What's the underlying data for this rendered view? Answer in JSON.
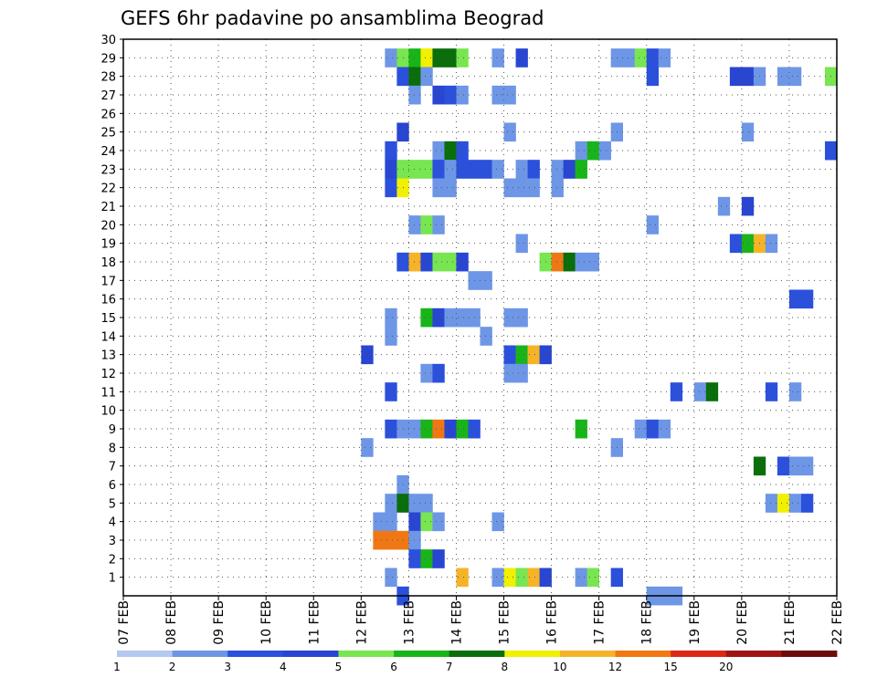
{
  "chart_data": {
    "type": "heatmap",
    "title": "GEFS 6hr padavine po ansamblima Beograd",
    "xlabel": "",
    "ylabel": "",
    "x_tick_labels": [
      "07 FEB",
      "08 FEB",
      "09 FEB",
      "10 FEB",
      "11 FEB",
      "12 FEB",
      "13 FEB",
      "14 FEB",
      "15 FEB",
      "16 FEB",
      "17 FEB",
      "18 FEB",
      "19 FEB",
      "20 FEB",
      "21 FEB",
      "22 FEB"
    ],
    "x_range_days": [
      7,
      22
    ],
    "time_step_hours": 6,
    "y_range": [
      0,
      30
    ],
    "y_ticks": [
      1,
      2,
      3,
      4,
      5,
      6,
      7,
      8,
      9,
      10,
      11,
      12,
      13,
      14,
      15,
      16,
      17,
      18,
      19,
      20,
      21,
      22,
      23,
      24,
      25,
      26,
      27,
      28,
      29,
      30
    ],
    "grid": true,
    "colorbar": {
      "position": "bottom",
      "tick_labels": [
        "1",
        "2",
        "3",
        "4",
        "5",
        "6",
        "7",
        "8",
        "10",
        "12",
        "15",
        "20"
      ],
      "colors": [
        "#b4c8f0",
        "#6e96e6",
        "#2a50dc",
        "#2846d2",
        "#78e650",
        "#19b419",
        "#0a6e0a",
        "#f0f000",
        "#f5b428",
        "#f07814",
        "#dc2814",
        "#a01414",
        "#6e0a0a"
      ]
    },
    "cells": [
      {
        "member": 29,
        "day": 12.5,
        "level": 1
      },
      {
        "member": 29,
        "day": 12.75,
        "level": 4
      },
      {
        "member": 29,
        "day": 13.0,
        "level": 5
      },
      {
        "member": 29,
        "day": 13.25,
        "level": 7
      },
      {
        "member": 29,
        "day": 13.5,
        "level": 6
      },
      {
        "member": 29,
        "day": 13.75,
        "level": 6
      },
      {
        "member": 29,
        "day": 14.0,
        "level": 4
      },
      {
        "member": 29,
        "day": 14.75,
        "level": 1
      },
      {
        "member": 29,
        "day": 15.25,
        "level": 3
      },
      {
        "member": 29,
        "day": 17.25,
        "level": 1
      },
      {
        "member": 29,
        "day": 17.5,
        "level": 1
      },
      {
        "member": 29,
        "day": 17.75,
        "level": 4
      },
      {
        "member": 29,
        "day": 18.0,
        "level": 2
      },
      {
        "member": 29,
        "day": 18.25,
        "level": 1
      },
      {
        "member": 28,
        "day": 12.75,
        "level": 2
      },
      {
        "member": 28,
        "day": 13.0,
        "level": 6
      },
      {
        "member": 28,
        "day": 13.25,
        "level": 1
      },
      {
        "member": 28,
        "day": 18.0,
        "level": 2
      },
      {
        "member": 28,
        "day": 19.75,
        "level": 3
      },
      {
        "member": 28,
        "day": 20.0,
        "level": 3
      },
      {
        "member": 28,
        "day": 20.25,
        "level": 1
      },
      {
        "member": 28,
        "day": 20.75,
        "level": 1
      },
      {
        "member": 28,
        "day": 21.0,
        "level": 1
      },
      {
        "member": 28,
        "day": 21.75,
        "level": 4
      },
      {
        "member": 27,
        "day": 13.0,
        "level": 1
      },
      {
        "member": 27,
        "day": 13.5,
        "level": 3
      },
      {
        "member": 27,
        "day": 13.75,
        "level": 2
      },
      {
        "member": 27,
        "day": 14.0,
        "level": 1
      },
      {
        "member": 27,
        "day": 14.75,
        "level": 1
      },
      {
        "member": 27,
        "day": 15.0,
        "level": 1
      },
      {
        "member": 25,
        "day": 12.75,
        "level": 3
      },
      {
        "member": 25,
        "day": 15.0,
        "level": 1
      },
      {
        "member": 25,
        "day": 17.25,
        "level": 1
      },
      {
        "member": 25,
        "day": 20.0,
        "level": 1
      },
      {
        "member": 24,
        "day": 12.5,
        "level": 2
      },
      {
        "member": 24,
        "day": 13.5,
        "level": 1
      },
      {
        "member": 24,
        "day": 13.75,
        "level": 6
      },
      {
        "member": 24,
        "day": 14.0,
        "level": 2
      },
      {
        "member": 24,
        "day": 16.5,
        "level": 1
      },
      {
        "member": 24,
        "day": 16.75,
        "level": 5
      },
      {
        "member": 24,
        "day": 17.0,
        "level": 1
      },
      {
        "member": 24,
        "day": 21.75,
        "level": 2
      },
      {
        "member": 23,
        "day": 12.5,
        "level": 3
      },
      {
        "member": 23,
        "day": 12.75,
        "level": 4
      },
      {
        "member": 23,
        "day": 13.0,
        "level": 4
      },
      {
        "member": 23,
        "day": 13.25,
        "level": 4
      },
      {
        "member": 23,
        "day": 13.5,
        "level": 2
      },
      {
        "member": 23,
        "day": 13.75,
        "level": 1
      },
      {
        "member": 23,
        "day": 14.0,
        "level": 2
      },
      {
        "member": 23,
        "day": 14.25,
        "level": 2
      },
      {
        "member": 23,
        "day": 14.5,
        "level": 2
      },
      {
        "member": 23,
        "day": 14.75,
        "level": 1
      },
      {
        "member": 23,
        "day": 15.25,
        "level": 1
      },
      {
        "member": 23,
        "day": 15.5,
        "level": 2
      },
      {
        "member": 23,
        "day": 16.0,
        "level": 1
      },
      {
        "member": 23,
        "day": 16.25,
        "level": 3
      },
      {
        "member": 23,
        "day": 16.5,
        "level": 5
      },
      {
        "member": 22,
        "day": 12.5,
        "level": 2
      },
      {
        "member": 22,
        "day": 12.75,
        "level": 7
      },
      {
        "member": 22,
        "day": 13.5,
        "level": 1
      },
      {
        "member": 22,
        "day": 13.75,
        "level": 1
      },
      {
        "member": 22,
        "day": 15.0,
        "level": 1
      },
      {
        "member": 22,
        "day": 15.25,
        "level": 1
      },
      {
        "member": 22,
        "day": 15.5,
        "level": 1
      },
      {
        "member": 22,
        "day": 16.0,
        "level": 1
      },
      {
        "member": 21,
        "day": 19.5,
        "level": 1
      },
      {
        "member": 21,
        "day": 20.0,
        "level": 3
      },
      {
        "member": 20,
        "day": 13.0,
        "level": 1
      },
      {
        "member": 20,
        "day": 13.25,
        "level": 4
      },
      {
        "member": 20,
        "day": 13.5,
        "level": 1
      },
      {
        "member": 20,
        "day": 18.0,
        "level": 1
      },
      {
        "member": 19,
        "day": 15.25,
        "level": 1
      },
      {
        "member": 19,
        "day": 19.75,
        "level": 2
      },
      {
        "member": 19,
        "day": 20.0,
        "level": 5
      },
      {
        "member": 19,
        "day": 20.25,
        "level": 8
      },
      {
        "member": 19,
        "day": 20.5,
        "level": 1
      },
      {
        "member": 18,
        "day": 12.75,
        "level": 2
      },
      {
        "member": 18,
        "day": 13.0,
        "level": 8
      },
      {
        "member": 18,
        "day": 13.25,
        "level": 3
      },
      {
        "member": 18,
        "day": 13.5,
        "level": 4
      },
      {
        "member": 18,
        "day": 13.75,
        "level": 4
      },
      {
        "member": 18,
        "day": 14.0,
        "level": 3
      },
      {
        "member": 18,
        "day": 15.75,
        "level": 4
      },
      {
        "member": 18,
        "day": 16.0,
        "level": 9
      },
      {
        "member": 18,
        "day": 16.25,
        "level": 6
      },
      {
        "member": 18,
        "day": 16.5,
        "level": 1
      },
      {
        "member": 18,
        "day": 16.75,
        "level": 1
      },
      {
        "member": 17,
        "day": 14.25,
        "level": 1
      },
      {
        "member": 17,
        "day": 14.5,
        "level": 1
      },
      {
        "member": 16,
        "day": 21.0,
        "level": 2
      },
      {
        "member": 16,
        "day": 21.25,
        "level": 2
      },
      {
        "member": 15,
        "day": 12.5,
        "level": 1
      },
      {
        "member": 15,
        "day": 13.25,
        "level": 5
      },
      {
        "member": 15,
        "day": 13.5,
        "level": 3
      },
      {
        "member": 15,
        "day": 13.75,
        "level": 1
      },
      {
        "member": 15,
        "day": 14.0,
        "level": 1
      },
      {
        "member": 15,
        "day": 14.25,
        "level": 1
      },
      {
        "member": 15,
        "day": 15.0,
        "level": 1
      },
      {
        "member": 15,
        "day": 15.25,
        "level": 1
      },
      {
        "member": 14,
        "day": 12.5,
        "level": 1
      },
      {
        "member": 14,
        "day": 14.5,
        "level": 1
      },
      {
        "member": 13,
        "day": 12.0,
        "level": 3
      },
      {
        "member": 13,
        "day": 15.0,
        "level": 2
      },
      {
        "member": 13,
        "day": 15.25,
        "level": 5
      },
      {
        "member": 13,
        "day": 15.5,
        "level": 8
      },
      {
        "member": 13,
        "day": 15.75,
        "level": 3
      },
      {
        "member": 12,
        "day": 13.25,
        "level": 1
      },
      {
        "member": 12,
        "day": 13.5,
        "level": 2
      },
      {
        "member": 12,
        "day": 15.0,
        "level": 1
      },
      {
        "member": 12,
        "day": 15.25,
        "level": 1
      },
      {
        "member": 11,
        "day": 12.5,
        "level": 2
      },
      {
        "member": 11,
        "day": 18.5,
        "level": 2
      },
      {
        "member": 11,
        "day": 19.0,
        "level": 1
      },
      {
        "member": 11,
        "day": 19.25,
        "level": 6
      },
      {
        "member": 11,
        "day": 20.5,
        "level": 2
      },
      {
        "member": 11,
        "day": 21.0,
        "level": 1
      },
      {
        "member": 9,
        "day": 12.5,
        "level": 2
      },
      {
        "member": 9,
        "day": 12.75,
        "level": 1
      },
      {
        "member": 9,
        "day": 13.0,
        "level": 1
      },
      {
        "member": 9,
        "day": 13.25,
        "level": 5
      },
      {
        "member": 9,
        "day": 13.5,
        "level": 9
      },
      {
        "member": 9,
        "day": 13.75,
        "level": 3
      },
      {
        "member": 9,
        "day": 14.0,
        "level": 5
      },
      {
        "member": 9,
        "day": 14.25,
        "level": 2
      },
      {
        "member": 9,
        "day": 16.5,
        "level": 5
      },
      {
        "member": 9,
        "day": 17.75,
        "level": 1
      },
      {
        "member": 9,
        "day": 18.0,
        "level": 2
      },
      {
        "member": 9,
        "day": 18.25,
        "level": 1
      },
      {
        "member": 8,
        "day": 12.0,
        "level": 1
      },
      {
        "member": 8,
        "day": 17.25,
        "level": 1
      },
      {
        "member": 7,
        "day": 20.25,
        "level": 6
      },
      {
        "member": 7,
        "day": 20.75,
        "level": 2
      },
      {
        "member": 7,
        "day": 21.0,
        "level": 1
      },
      {
        "member": 7,
        "day": 21.25,
        "level": 1
      },
      {
        "member": 6,
        "day": 12.75,
        "level": 1
      },
      {
        "member": 5,
        "day": 12.5,
        "level": 1
      },
      {
        "member": 5,
        "day": 12.75,
        "level": 6
      },
      {
        "member": 5,
        "day": 13.0,
        "level": 1
      },
      {
        "member": 5,
        "day": 13.25,
        "level": 1
      },
      {
        "member": 5,
        "day": 20.5,
        "level": 1
      },
      {
        "member": 5,
        "day": 20.75,
        "level": 7
      },
      {
        "member": 5,
        "day": 21.0,
        "level": 1
      },
      {
        "member": 5,
        "day": 21.25,
        "level": 2
      },
      {
        "member": 4,
        "day": 12.25,
        "level": 1
      },
      {
        "member": 4,
        "day": 12.5,
        "level": 1
      },
      {
        "member": 4,
        "day": 13.0,
        "level": 3
      },
      {
        "member": 4,
        "day": 13.25,
        "level": 4
      },
      {
        "member": 4,
        "day": 13.5,
        "level": 1
      },
      {
        "member": 4,
        "day": 14.75,
        "level": 1
      },
      {
        "member": 3,
        "day": 12.25,
        "level": 9
      },
      {
        "member": 3,
        "day": 12.5,
        "level": 9
      },
      {
        "member": 3,
        "day": 12.75,
        "level": 9
      },
      {
        "member": 3,
        "day": 13.0,
        "level": 1
      },
      {
        "member": 2,
        "day": 13.0,
        "level": 2
      },
      {
        "member": 2,
        "day": 13.25,
        "level": 5
      },
      {
        "member": 2,
        "day": 13.5,
        "level": 3
      },
      {
        "member": 1,
        "day": 12.5,
        "level": 1
      },
      {
        "member": 1,
        "day": 14.0,
        "level": 8
      },
      {
        "member": 1,
        "day": 14.75,
        "level": 1
      },
      {
        "member": 1,
        "day": 15.0,
        "level": 7
      },
      {
        "member": 1,
        "day": 15.25,
        "level": 4
      },
      {
        "member": 1,
        "day": 15.5,
        "level": 8
      },
      {
        "member": 1,
        "day": 15.75,
        "level": 3
      },
      {
        "member": 1,
        "day": 16.5,
        "level": 1
      },
      {
        "member": 1,
        "day": 16.75,
        "level": 4
      },
      {
        "member": 1,
        "day": 17.25,
        "level": 2
      },
      {
        "member": 0,
        "day": 12.75,
        "level": 2
      },
      {
        "member": 0,
        "day": 18.0,
        "level": 1
      },
      {
        "member": 0,
        "day": 18.25,
        "level": 1
      },
      {
        "member": 0,
        "day": 18.5,
        "level": 1
      }
    ]
  }
}
